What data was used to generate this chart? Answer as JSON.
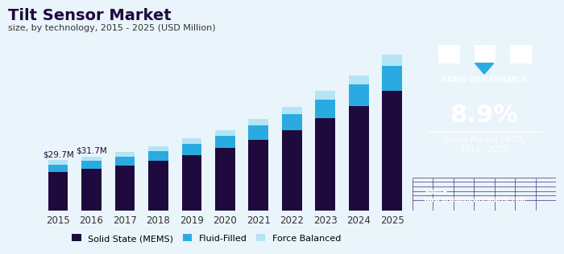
{
  "title": "Tilt Sensor Market",
  "subtitle": "size, by technology, 2015 - 2025 (USD Million)",
  "years": [
    2015,
    2016,
    2017,
    2018,
    2019,
    2020,
    2021,
    2022,
    2023,
    2024,
    2025
  ],
  "solid_state": [
    22.5,
    24.5,
    26.5,
    29.0,
    32.5,
    36.5,
    41.5,
    47.0,
    54.0,
    61.0,
    70.0
  ],
  "fluid_filled": [
    4.5,
    4.8,
    5.2,
    5.8,
    6.5,
    7.2,
    8.5,
    9.5,
    11.0,
    12.5,
    14.5
  ],
  "force_balanced": [
    2.7,
    2.4,
    2.8,
    3.0,
    3.2,
    3.5,
    3.8,
    4.2,
    5.0,
    5.5,
    6.5
  ],
  "annotation_2015": "$29.7M",
  "annotation_2016": "$31.7M",
  "color_solid": "#1e0a3c",
  "color_fluid": "#29abe2",
  "color_force": "#b3e5f5",
  "bg_color": "#eaf4fb",
  "right_panel_color": "#2d1459",
  "cagr_text": "8.9%",
  "cagr_label": "Global Market CAGR,\n2019 - 2025",
  "source_text": "Source:\nwww.grandviewresearch.com",
  "brand_name": "GRAND VIEW RESEARCH"
}
